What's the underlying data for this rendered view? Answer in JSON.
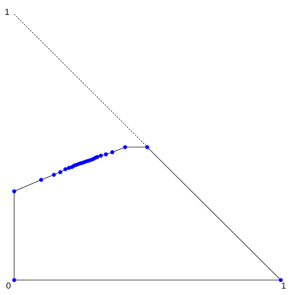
{
  "chart_data": {
    "type": "line",
    "xlim": [
      0,
      1
    ],
    "ylim": [
      0,
      1
    ],
    "xticks": [
      0,
      1
    ],
    "yticks": [
      1
    ],
    "closed": true,
    "series": [
      {
        "color": "#0000ff",
        "line_color": "#000000",
        "x": [
          0,
          0.101,
          0.149,
          0.173,
          0.192,
          0.205,
          0.216,
          0.224,
          0.232,
          0.24,
          0.248,
          0.256,
          0.264,
          0.272,
          0.28,
          0.288,
          0.296,
          0.304,
          0.312,
          0.325,
          0.344,
          0.368,
          0.416,
          0.499,
          1,
          0
        ],
        "values": [
          0.334,
          0.377,
          0.396,
          0.406,
          0.417,
          0.422,
          0.425,
          0.43,
          0.433,
          0.436,
          0.439,
          0.441,
          0.444,
          0.447,
          0.449,
          0.452,
          0.455,
          0.46,
          0.463,
          0.468,
          0.473,
          0.481,
          0.5,
          0.5,
          0,
          0
        ]
      }
    ],
    "dashed_line": {
      "color": "#000000",
      "x": [
        0,
        0.5
      ],
      "values": [
        1,
        0.5
      ]
    }
  }
}
